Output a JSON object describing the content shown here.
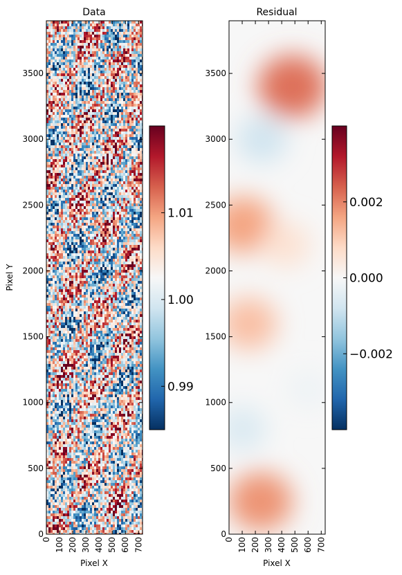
{
  "chart_data": [
    {
      "type": "heatmap",
      "title": "Data",
      "xlabel": "Pixel X",
      "ylabel": "Pixel Y",
      "xlim": [
        0,
        730
      ],
      "ylim": [
        0,
        3900
      ],
      "x_ticks": [
        "0",
        "100",
        "200",
        "300",
        "400",
        "500",
        "600",
        "700"
      ],
      "y_ticks": [
        "0",
        "500",
        "1000",
        "1500",
        "2000",
        "2500",
        "3000",
        "3500"
      ],
      "colormap": "RdBu_r",
      "colorbar": {
        "range": [
          0.985,
          1.02
        ],
        "ticks": [
          0.99,
          1.0,
          1.01
        ],
        "tick_labels": [
          "0.99",
          "1.00",
          "1.01"
        ]
      },
      "pattern": "high-frequency noise around 1.00 with diagonal striping"
    },
    {
      "type": "heatmap",
      "title": "Residual",
      "xlabel": "Pixel X",
      "ylabel": "",
      "xlim": [
        0,
        730
      ],
      "ylim": [
        0,
        3900
      ],
      "x_ticks": [
        "0",
        "100",
        "200",
        "300",
        "400",
        "500",
        "600",
        "700"
      ],
      "y_ticks": [
        "0",
        "500",
        "1000",
        "1500",
        "2000",
        "2500",
        "3000",
        "3500"
      ],
      "colormap": "RdBu_r",
      "colorbar": {
        "range": [
          -0.004,
          0.004
        ],
        "ticks": [
          -0.002,
          0.0,
          0.002
        ],
        "tick_labels": [
          "−0.002",
          "0.000",
          "0.002"
        ]
      },
      "blobs": [
        {
          "x": 480,
          "y": 3400,
          "value": 0.0022
        },
        {
          "x": 110,
          "y": 2350,
          "value": 0.0016
        },
        {
          "x": 430,
          "y": 2200,
          "value": 0.0006
        },
        {
          "x": 150,
          "y": 1600,
          "value": 0.0012
        },
        {
          "x": 240,
          "y": 250,
          "value": 0.0018
        },
        {
          "x": 250,
          "y": 3000,
          "value": -0.0008
        },
        {
          "x": 100,
          "y": 800,
          "value": -0.0006
        },
        {
          "x": 600,
          "y": 1100,
          "value": -0.0002
        }
      ]
    }
  ],
  "colors": {
    "cmap_low": "#053061",
    "cmap_mid": "#f7f7f7",
    "cmap_high": "#67001f"
  }
}
